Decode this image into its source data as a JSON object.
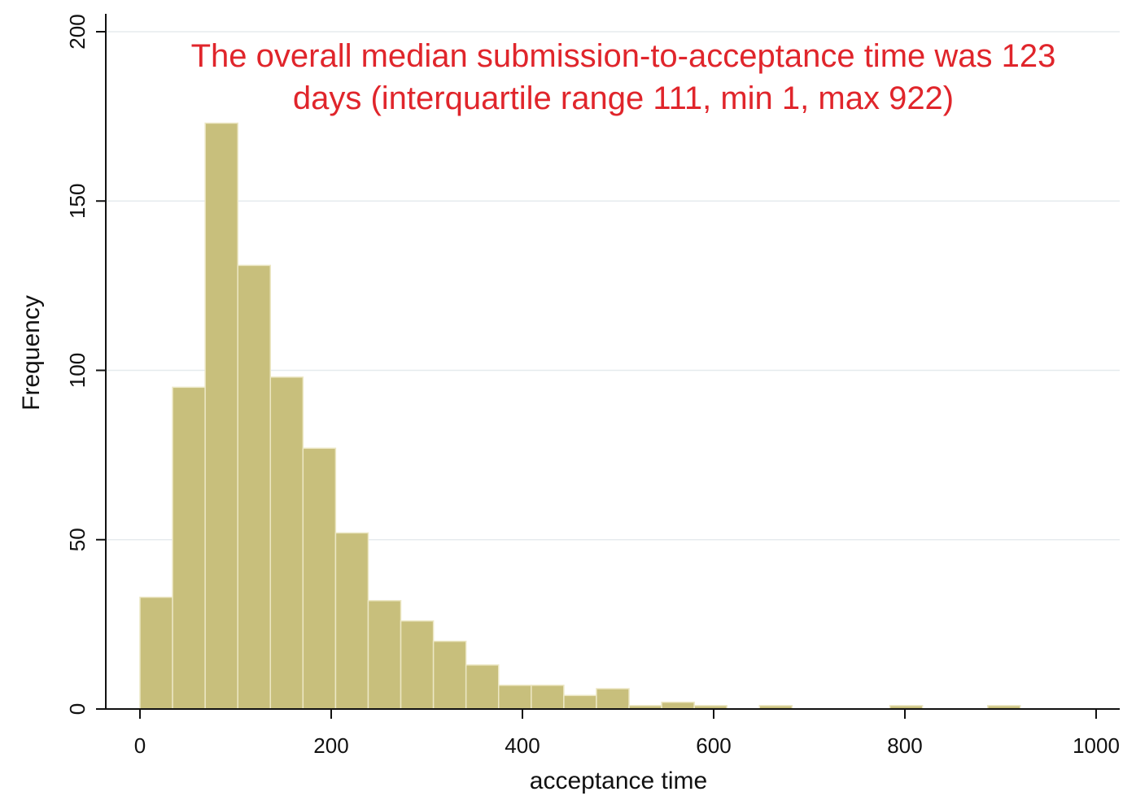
{
  "chart_data": {
    "type": "bar",
    "xlabel": "acceptance time",
    "ylabel": "Frequency",
    "xlim": [
      0,
      1000
    ],
    "ylim": [
      0,
      200
    ],
    "x_ticks": [
      0,
      200,
      400,
      600,
      800,
      1000
    ],
    "y_ticks": [
      0,
      50,
      100,
      150,
      200
    ],
    "grid": true,
    "bin_width": 34.1,
    "bins": [
      {
        "start": 0,
        "value": 33
      },
      {
        "start": 34.1,
        "value": 95
      },
      {
        "start": 68.2,
        "value": 173
      },
      {
        "start": 102.3,
        "value": 131
      },
      {
        "start": 136.4,
        "value": 98
      },
      {
        "start": 170.5,
        "value": 77
      },
      {
        "start": 204.6,
        "value": 52
      },
      {
        "start": 238.7,
        "value": 32
      },
      {
        "start": 272.8,
        "value": 26
      },
      {
        "start": 306.9,
        "value": 20
      },
      {
        "start": 341.0,
        "value": 13
      },
      {
        "start": 375.1,
        "value": 7
      },
      {
        "start": 409.2,
        "value": 7
      },
      {
        "start": 443.3,
        "value": 4
      },
      {
        "start": 477.4,
        "value": 6
      },
      {
        "start": 511.5,
        "value": 1
      },
      {
        "start": 545.6,
        "value": 2
      },
      {
        "start": 579.7,
        "value": 1
      },
      {
        "start": 647.9,
        "value": 1
      },
      {
        "start": 784.3,
        "value": 1
      },
      {
        "start": 886.6,
        "value": 1
      }
    ],
    "annotation": [
      "The overall median submission-to-acceptance time was 123",
      "days (interquartile range 111, min 1, max 922)"
    ]
  },
  "colors": {
    "bar_fill": "#c8bf7c",
    "bar_edge": "#ece7c4",
    "annotation": "#e0252b",
    "grid": "#e6ebee",
    "axis": "#111111"
  }
}
